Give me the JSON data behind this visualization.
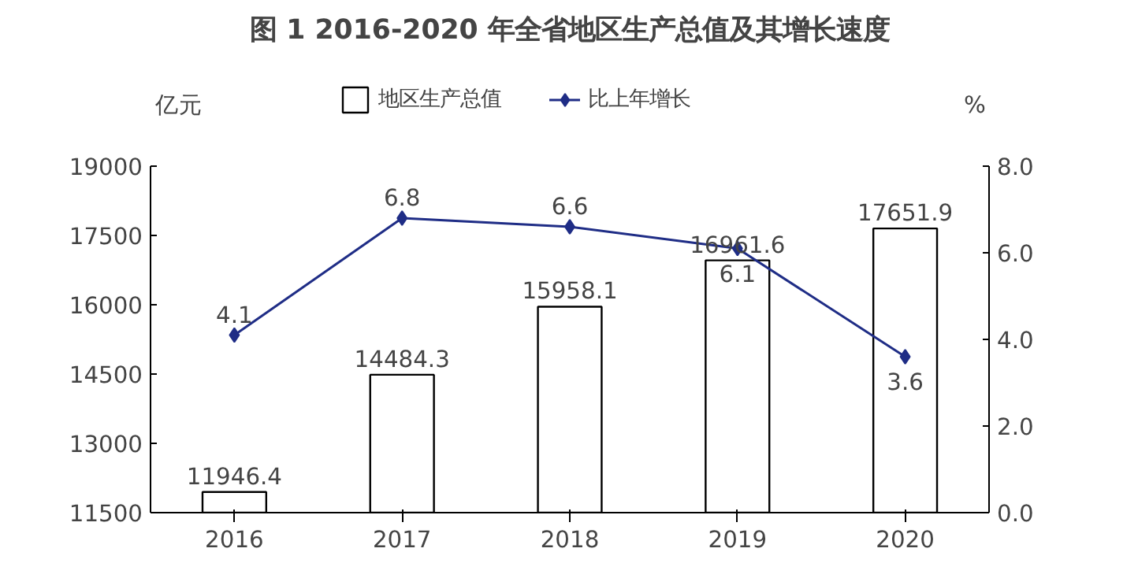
{
  "chart_data": {
    "type": "bar",
    "title": "图 1 2016-2020 年全省地区生产总值及其增长速度",
    "ylabel": "亿元",
    "y2label": "%",
    "categories": [
      "2016",
      "2017",
      "2018",
      "2019",
      "2020"
    ],
    "series": [
      {
        "name": "地区生产总值",
        "color": "#ffffff",
        "values": [
          11946.4,
          14484.3,
          15958.1,
          16961.6,
          17651.9
        ]
      },
      {
        "name": "比上年增长",
        "type": "line",
        "axis": "y2",
        "color": "#1f2d86",
        "marker": "diamond",
        "values": [
          4.1,
          6.8,
          6.6,
          6.1,
          3.6
        ]
      }
    ],
    "ylim": [
      11500,
      19000
    ],
    "yticks": [
      11500,
      13000,
      14500,
      16000,
      17500,
      19000
    ],
    "y2lim": [
      0,
      8
    ],
    "y2ticks": [
      {
        "value": 0,
        "label": "0.0"
      },
      {
        "value": 2,
        "label": "2.0"
      },
      {
        "value": 4,
        "label": "4.0"
      },
      {
        "value": 6,
        "label": "6.0"
      },
      {
        "value": 8,
        "label": "8.0"
      }
    ],
    "data_labels": true,
    "legend": "top",
    "grid": false
  }
}
